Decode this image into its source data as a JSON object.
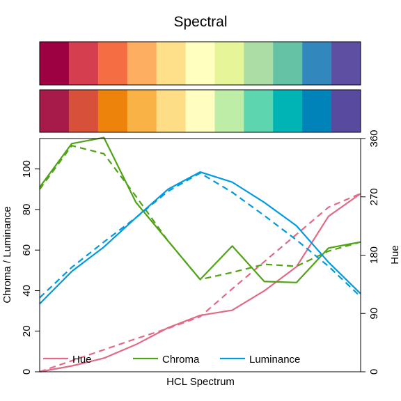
{
  "chart_data": {
    "type": "line",
    "title": "Spectral",
    "xlabel": "HCL Spectrum",
    "ylabel_left": "Chroma / Luminance",
    "ylabel_right": "Hue",
    "ylim_left": [
      0,
      115
    ],
    "ylim_right": [
      0,
      360
    ],
    "left_ticks": [
      "0",
      "20",
      "40",
      "60",
      "80",
      "100"
    ],
    "right_ticks": [
      "0",
      "90",
      "180",
      "270",
      "360"
    ],
    "swatches_top": [
      "#9E0142",
      "#D53E4F",
      "#F46D43",
      "#FDAE61",
      "#FEE08B",
      "#FFFFBF",
      "#E6F598",
      "#ABDDA4",
      "#66C2A5",
      "#3288BD",
      "#5E4FA2"
    ],
    "swatches_bottom": [
      "#A71B4B",
      "#D7513A",
      "#EE830B",
      "#F8B245",
      "#FDDD85",
      "#FFFDBF",
      "#BDEDA6",
      "#5DD5AF",
      "#00B3B4",
      "#0083B8",
      "#584B9F"
    ],
    "x": [
      1,
      2,
      3,
      4,
      5,
      6,
      7,
      8,
      9,
      10,
      11,
      12
    ],
    "series": [
      {
        "name": "Hue",
        "axis": "right",
        "color": "#E16A86",
        "values": [
          0,
          9,
          21,
          42,
          68,
          87,
          95,
          125,
          162,
          240,
          275
        ],
        "x": [
          1,
          2,
          3,
          4,
          5,
          6,
          7,
          8,
          9,
          10,
          11
        ],
        "fitted": [
          0,
          17,
          34,
          51,
          67,
          85,
          128,
          170,
          212,
          254,
          275
        ],
        "fitted_x": [
          1,
          2,
          3,
          4,
          5,
          6,
          7,
          8,
          9,
          10,
          11
        ]
      },
      {
        "name": "Chroma",
        "axis": "left",
        "color": "#50A315",
        "values": [
          91,
          112.5,
          115.5,
          83.5,
          64.5,
          45.5,
          62,
          44.5,
          44,
          61,
          64
        ],
        "x": [
          1,
          2,
          3,
          4,
          5,
          6,
          7,
          8,
          9,
          10,
          11
        ],
        "fitted": [
          90,
          111.5,
          107.5,
          86.5,
          64.5,
          45.5,
          49,
          53,
          52,
          59.5,
          64
        ],
        "fitted_x": [
          1,
          2,
          3,
          4,
          5,
          6,
          7,
          8,
          9,
          10,
          11
        ]
      },
      {
        "name": "Luminance",
        "axis": "left",
        "color": "#009ADE",
        "values": [
          33.5,
          49.5,
          61.5,
          76,
          90,
          98.5,
          93.5,
          83.5,
          72,
          54,
          38.5
        ],
        "x": [
          1,
          2,
          3,
          4,
          5,
          6,
          7,
          8,
          9,
          10,
          11
        ],
        "fitted": [
          36.5,
          51.5,
          64,
          76,
          89,
          98,
          88.5,
          77,
          65,
          52,
          37
        ],
        "fitted_x": [
          1,
          2,
          3,
          4,
          5,
          6,
          7,
          8,
          9,
          10,
          11
        ]
      }
    ],
    "legend_position": "bottom",
    "line_styles": "solid = observed, dashed = fitted"
  }
}
